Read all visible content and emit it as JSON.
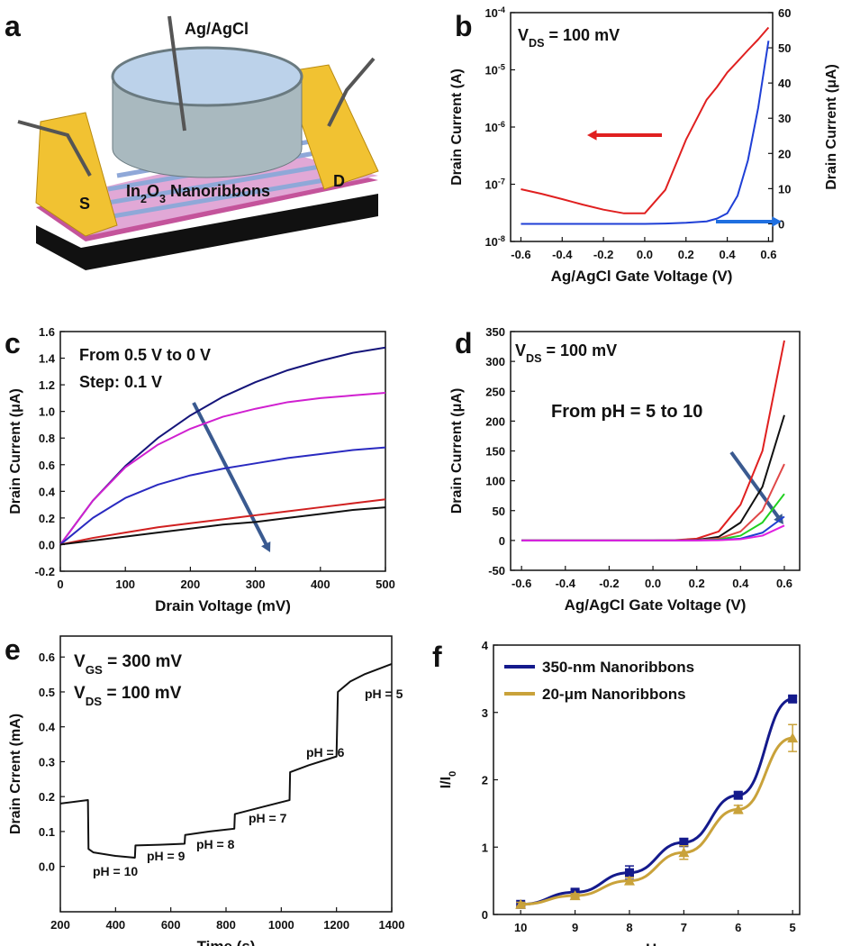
{
  "diagram": {
    "panel_label": "a",
    "electrode": "Ag/AgCl",
    "source": "S",
    "drain": "D",
    "channel": [
      "In",
      "2",
      "O",
      "3",
      " Nanoribbons"
    ]
  },
  "chart_data": [
    {
      "panel_label": "b",
      "type": "line",
      "annotations": [
        [
          "V",
          "DS",
          " = 100 mV"
        ]
      ],
      "x": [
        -0.6,
        -0.5,
        -0.4,
        -0.3,
        -0.2,
        -0.1,
        0,
        0.1,
        0.2,
        0.3,
        0.35,
        0.4,
        0.45,
        0.5,
        0.55,
        0.6
      ],
      "xlim": [
        -0.65,
        0.62
      ],
      "xticks": [
        -0.6,
        -0.4,
        -0.2,
        {
          "value": 0,
          "label": "0.0"
        },
        0.2,
        0.4,
        0.6
      ],
      "ylim": [
        1e-08,
        0.0001
      ],
      "yscale": "log",
      "yticks": [
        {
          "value": 1e-08,
          "label": [
            "10",
            "-8"
          ]
        },
        {
          "value": 1e-07,
          "label": [
            "10",
            "-7"
          ]
        },
        {
          "value": 1e-06,
          "label": [
            "10",
            "-6"
          ]
        },
        {
          "value": 1e-05,
          "label": [
            "10",
            "-5"
          ]
        },
        {
          "value": 0.0001,
          "label": [
            "10",
            "-4"
          ]
        }
      ],
      "y2lim": [
        -5,
        60
      ],
      "y2ticks": [
        0,
        10,
        20,
        30,
        40,
        50,
        60
      ],
      "xlabel": "Ag/AgCl Gate Voltage (V)",
      "ylabel": "Drain Current (A)",
      "y2label": "Drain Current (μA)",
      "series": [
        {
          "color": "#e02020",
          "values": [
            8.2e-08,
            6.8e-08,
            5.5e-08,
            4.4e-08,
            3.6e-08,
            3.1e-08,
            3.1e-08,
            8e-08,
            6e-07,
            3e-06,
            5e-06,
            9e-06,
            1.4e-05,
            2.2e-05,
            3.4e-05,
            5.5e-05
          ]
        },
        {
          "color": "#1f3fd6",
          "axis": "y2",
          "values": [
            0,
            0,
            0,
            0,
            0,
            0,
            0,
            0.1,
            0.3,
            0.7,
            1.5,
            3,
            8,
            18,
            33,
            52
          ]
        }
      ]
    },
    {
      "panel_label": "c",
      "type": "line",
      "annotations": [
        "From 0.5 V to 0 V",
        "Step: 0.1 V"
      ],
      "x": [
        0,
        50,
        100,
        150,
        200,
        250,
        300,
        350,
        400,
        450,
        500
      ],
      "xlim": [
        0,
        500
      ],
      "xticks": [
        0,
        100,
        200,
        300,
        400,
        500
      ],
      "ylim": [
        -0.2,
        1.6
      ],
      "yticks": [
        -0.2,
        {
          "value": 0,
          "label": "0.0"
        },
        0.2,
        0.4,
        0.6,
        0.8,
        {
          "value": 1,
          "label": "1.0"
        },
        1.2,
        1.4,
        1.6
      ],
      "xlabel": "Drain Voltage (mV)",
      "ylabel": "Drain Current (μA)",
      "series": [
        {
          "color": "#15157a",
          "values": [
            0,
            0.33,
            0.59,
            0.8,
            0.97,
            1.11,
            1.22,
            1.31,
            1.38,
            1.44,
            1.48
          ]
        },
        {
          "color": "#d020d0",
          "values": [
            0,
            0.33,
            0.58,
            0.75,
            0.87,
            0.96,
            1.02,
            1.07,
            1.1,
            1.12,
            1.14
          ]
        },
        {
          "color": "#2a2ac0",
          "values": [
            0,
            0.2,
            0.35,
            0.45,
            0.52,
            0.57,
            0.61,
            0.65,
            0.68,
            0.71,
            0.73
          ]
        },
        {
          "color": "#d02020",
          "values": [
            0,
            0.05,
            0.09,
            0.13,
            0.16,
            0.19,
            0.22,
            0.25,
            0.28,
            0.31,
            0.34
          ]
        },
        {
          "color": "#111111",
          "values": [
            0,
            0.03,
            0.06,
            0.09,
            0.12,
            0.15,
            0.17,
            0.2,
            0.23,
            0.26,
            0.28
          ]
        }
      ]
    },
    {
      "panel_label": "d",
      "type": "line",
      "annotations": [
        [
          "V",
          "DS",
          " = 100 mV"
        ],
        "From pH = 5 to 10"
      ],
      "x": [
        -0.6,
        -0.4,
        -0.2,
        0,
        0.1,
        0.2,
        0.3,
        0.4,
        0.5,
        0.6
      ],
      "xlim": [
        -0.65,
        0.67
      ],
      "xticks": [
        -0.6,
        -0.4,
        -0.2,
        {
          "value": 0,
          "label": "0.0"
        },
        0.2,
        0.4,
        0.6
      ],
      "ylim": [
        -50,
        350
      ],
      "yticks": [
        -50,
        0,
        50,
        100,
        150,
        200,
        250,
        300,
        350
      ],
      "xlabel": "Ag/AgCl Gate Voltage (V)",
      "ylabel": "Drain Current (μA)",
      "series": [
        {
          "color": "#e02020",
          "values": [
            0,
            0,
            0,
            0,
            0.5,
            3,
            15,
            60,
            150,
            335
          ]
        },
        {
          "color": "#111111",
          "values": [
            0,
            0,
            0,
            0,
            0.2,
            1,
            6,
            30,
            90,
            210
          ]
        },
        {
          "color": "#e04848",
          "values": [
            0,
            0,
            0,
            0,
            0.1,
            0.5,
            3,
            15,
            50,
            128
          ]
        },
        {
          "color": "#20d020",
          "values": [
            0,
            0,
            0,
            0,
            0,
            0.2,
            1.5,
            8,
            30,
            78
          ]
        },
        {
          "color": "#2040d0",
          "values": [
            0,
            0,
            0,
            0,
            0,
            0.1,
            0.7,
            3,
            13,
            40
          ]
        },
        {
          "color": "#e020e0",
          "values": [
            0,
            0,
            0,
            0,
            0,
            0,
            0.4,
            2,
            8,
            25
          ]
        }
      ]
    },
    {
      "panel_label": "e",
      "type": "line",
      "annotations": [
        [
          "V",
          "GS",
          " = 300 mV"
        ],
        [
          "V",
          "DS",
          " = 100 mV"
        ],
        "pH = 10",
        "pH = 9",
        "pH = 8",
        "pH = 7",
        "pH = 6",
        "pH = 5"
      ],
      "x": [
        200,
        300,
        302,
        320,
        400,
        470,
        472,
        560,
        650,
        652,
        740,
        830,
        832,
        930,
        1030,
        1032,
        1100,
        1200,
        1205,
        1250,
        1300,
        1400
      ],
      "xlim": [
        200,
        1400
      ],
      "xticks": [
        200,
        400,
        600,
        800,
        1000,
        1200,
        1400
      ],
      "ylim": [
        -0.13,
        0.66
      ],
      "yticks": [
        {
          "value": 0,
          "label": "0.0"
        },
        0.1,
        0.2,
        0.3,
        0.4,
        0.5,
        0.6
      ],
      "xlabel": "Time (s)",
      "ylabel": "Drain Crrent (mA)",
      "series": [
        {
          "color": "#111111",
          "values": [
            0.18,
            0.19,
            0.05,
            0.04,
            0.03,
            0.025,
            0.06,
            0.062,
            0.065,
            0.09,
            0.1,
            0.108,
            0.15,
            0.17,
            0.19,
            0.27,
            0.29,
            0.315,
            0.5,
            0.53,
            0.55,
            0.58
          ]
        }
      ]
    },
    {
      "panel_label": "f",
      "type": "scatter",
      "fit_line": true,
      "legend": "upper left",
      "x": [
        10,
        9,
        8,
        7,
        6,
        5
      ],
      "xlim": [
        10.5,
        4.87
      ],
      "xticks": [
        10,
        9,
        8,
        7,
        6,
        5
      ],
      "ylim": [
        0,
        4
      ],
      "yticks": [
        0,
        1,
        2,
        3,
        4
      ],
      "xlabel": "pH",
      "ylabel": [
        "I/I",
        "0"
      ],
      "series": [
        {
          "name": "350-nm Nanoribbons",
          "color": "#141a8c",
          "marker": "square",
          "values": [
            0.15,
            0.33,
            0.62,
            1.07,
            1.77,
            3.2
          ],
          "errors": [
            0.03,
            0.04,
            0.1,
            0.06,
            0.05,
            0.04
          ]
        },
        {
          "name": "20-μm Nanoribbons",
          "color": "#c9a23a",
          "marker": "triangle",
          "values": [
            0.15,
            0.28,
            0.5,
            0.92,
            1.56,
            2.62
          ],
          "errors": [
            0.03,
            0.03,
            0.05,
            0.1,
            0.06,
            0.2
          ]
        }
      ]
    }
  ]
}
